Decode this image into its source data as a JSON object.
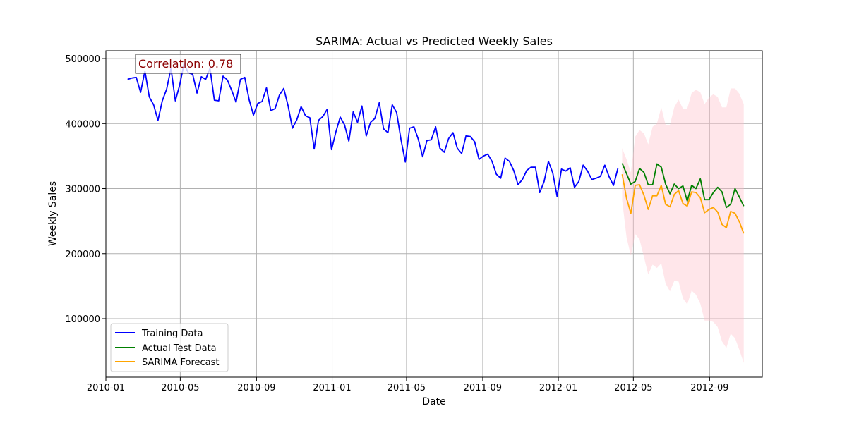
{
  "chart_data": {
    "type": "line",
    "title": "SARIMA: Actual vs Predicted Weekly Sales",
    "xlabel": "Date",
    "ylabel": "Weekly Sales",
    "xlim": [
      "2010-01-01",
      "2012-11-25"
    ],
    "ylim": [
      10000,
      512000
    ],
    "x_ticks": [
      "2010-01",
      "2010-05",
      "2010-09",
      "2011-01",
      "2011-05",
      "2011-09",
      "2012-01",
      "2012-05",
      "2012-09"
    ],
    "y_ticks": [
      100000,
      200000,
      300000,
      400000,
      500000
    ],
    "grid": true,
    "legend_position": "bottom-left",
    "annotation": "Correlation: 0.78",
    "series": [
      {
        "name": "Training Data",
        "color": "#0000ff",
        "start": "2010-02-05",
        "step_days": 7,
        "values": [
          468000,
          470000,
          471000,
          448000,
          481000,
          441000,
          429000,
          405000,
          435000,
          453000,
          485000,
          435000,
          459000,
          492000,
          478000,
          476000,
          447000,
          472000,
          468000,
          485000,
          436000,
          435000,
          473000,
          467000,
          451000,
          433000,
          468000,
          471000,
          437000,
          413000,
          431000,
          434000,
          455000,
          420000,
          423000,
          444000,
          454000,
          427000,
          393000,
          406000,
          426000,
          412000,
          409000,
          361000,
          405000,
          411000,
          422000,
          360000,
          387000,
          410000,
          398000,
          373000,
          418000,
          402000,
          427000,
          381000,
          402000,
          408000,
          432000,
          392000,
          386000,
          429000,
          417000,
          376000,
          341000,
          393000,
          395000,
          376000,
          349000,
          374000,
          375000,
          395000,
          362000,
          356000,
          377000,
          386000,
          362000,
          354000,
          381000,
          380000,
          372000,
          345000,
          350000,
          353000,
          342000,
          322000,
          316000,
          347000,
          342000,
          328000,
          306000,
          314000,
          328000,
          333000,
          333000,
          294000,
          311000,
          342000,
          324000,
          288000,
          330000,
          327000,
          332000,
          302000,
          311000,
          336000,
          327000,
          314000,
          316000,
          319000,
          336000,
          318000,
          305000,
          331000
        ]
      },
      {
        "name": "Actual Test Data",
        "color": "#008000",
        "start": "2012-04-13",
        "step_days": 7,
        "values": [
          339000,
          323000,
          307000,
          311000,
          331000,
          325000,
          306000,
          306000,
          338000,
          333000,
          307000,
          292000,
          307000,
          300000,
          304000,
          281000,
          305000,
          300000,
          315000,
          283000,
          283000,
          294000,
          302000,
          295000,
          271000,
          276000,
          300000,
          287000,
          273000
        ]
      },
      {
        "name": "SARIMA Forecast",
        "color": "#ffa500",
        "start": "2012-04-13",
        "step_days": 7,
        "values": [
          322000,
          285000,
          262000,
          305000,
          306000,
          290000,
          268000,
          289000,
          289000,
          305000,
          276000,
          272000,
          291000,
          297000,
          277000,
          273000,
          295000,
          294000,
          286000,
          263000,
          268000,
          271000,
          264000,
          245000,
          240000,
          265000,
          262000,
          249000,
          231000
        ],
        "ci_color": "#ffc0cb",
        "ci_upper": [
          362000,
          345000,
          325000,
          380000,
          390000,
          385000,
          368000,
          395000,
          400000,
          425000,
          398000,
          398000,
          425000,
          437000,
          423000,
          423000,
          447000,
          452000,
          448000,
          430000,
          440000,
          445000,
          441000,
          425000,
          425000,
          454000,
          454000,
          446000,
          430000
        ],
        "ci_lower": [
          282000,
          225000,
          197000,
          230000,
          222000,
          195000,
          168000,
          183000,
          178000,
          185000,
          154000,
          142000,
          158000,
          157000,
          131000,
          122000,
          143000,
          137000,
          123000,
          97000,
          97000,
          95000,
          87000,
          65000,
          55000,
          77000,
          70000,
          52000,
          32000
        ]
      }
    ]
  }
}
